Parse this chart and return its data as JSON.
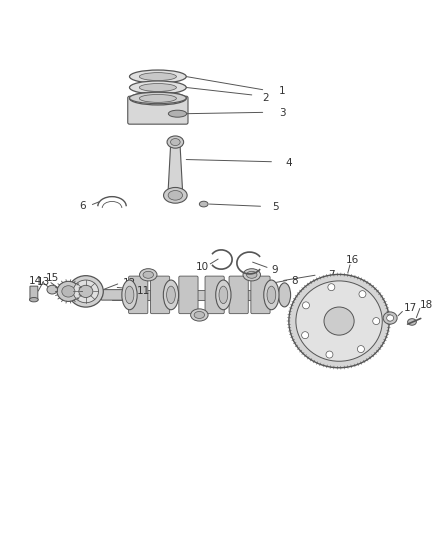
{
  "bg_color": "#ffffff",
  "line_color": "#555555",
  "label_color": "#333333",
  "fig_width": 4.38,
  "fig_height": 5.33,
  "dpi": 100,
  "flywheel_bolt_angles": [
    0,
    51,
    102,
    153,
    204,
    255,
    306
  ],
  "sprocket_tooth_angles": [
    0,
    20,
    40,
    60,
    80,
    100,
    120,
    140,
    160,
    180,
    200,
    220,
    240,
    260,
    280,
    300,
    320,
    340
  ],
  "flywheel_tooth_angles": [
    0,
    4,
    8,
    12,
    16,
    20,
    24,
    28,
    32,
    36,
    40,
    44,
    48,
    52,
    56,
    60,
    64,
    68,
    72,
    76,
    80,
    84,
    88,
    92,
    96,
    100,
    104,
    108,
    112,
    116,
    120,
    124,
    128,
    132,
    136,
    140,
    144,
    148,
    152,
    156,
    160,
    164,
    168,
    172,
    176,
    180,
    184,
    188,
    192,
    196,
    200,
    204,
    208,
    212,
    216,
    220,
    224,
    228,
    232,
    236,
    240,
    244,
    248,
    252,
    256,
    260,
    264,
    268,
    272,
    276,
    280,
    284,
    288,
    292,
    296,
    300,
    304,
    308,
    312,
    316,
    320,
    324,
    328,
    332,
    336,
    340,
    344,
    348,
    352,
    356
  ]
}
